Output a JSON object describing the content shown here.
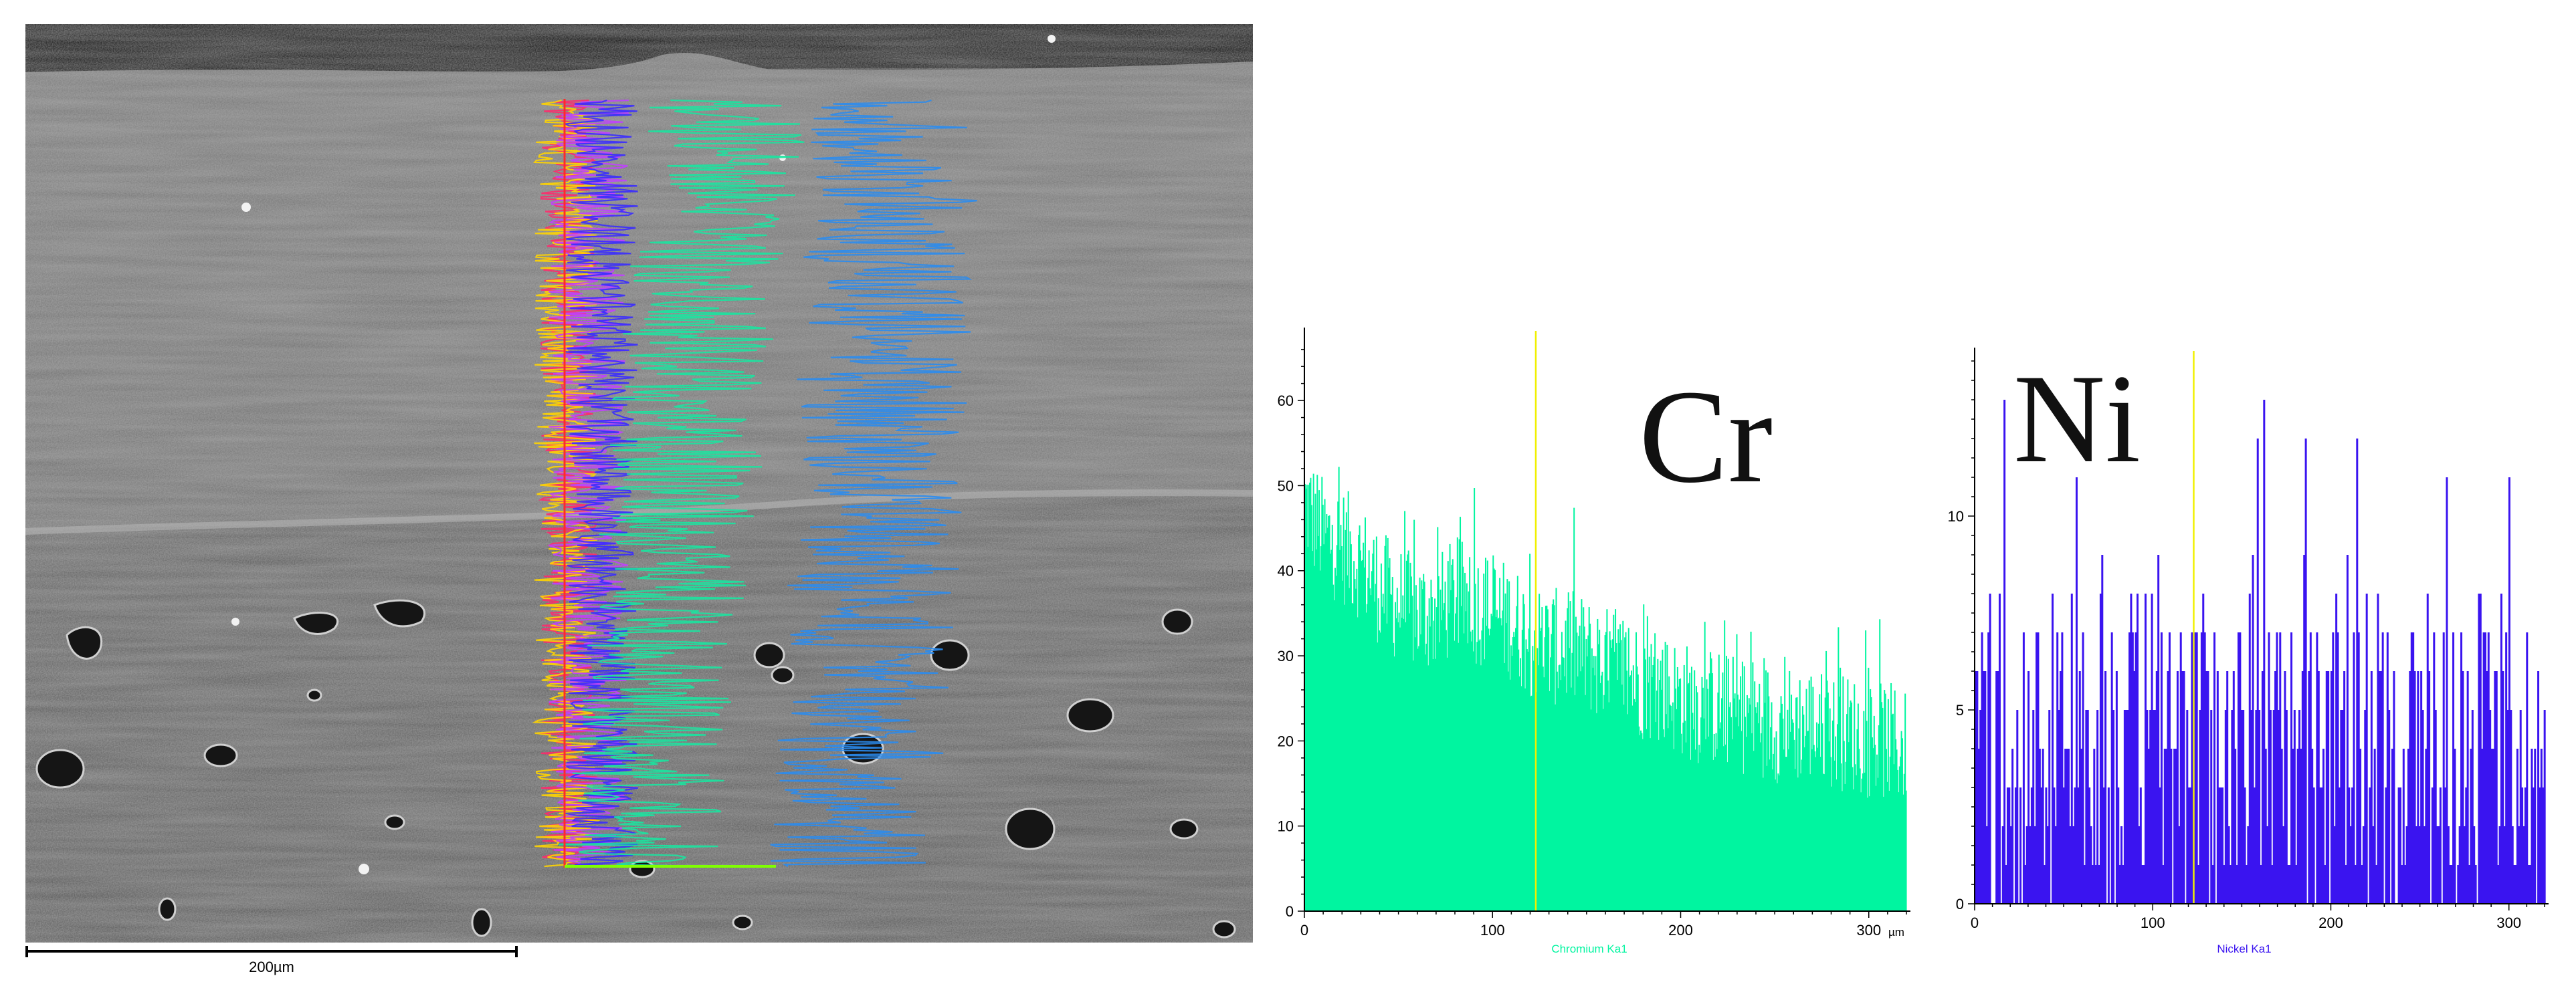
{
  "micrograph": {
    "scale_bar_label": "200µm",
    "trace_colors": [
      "#ff2a6d",
      "#ffd400",
      "#c040ff",
      "#3a2cff",
      "#18e6a0",
      "#2a8cf0"
    ]
  },
  "chart_data": [
    {
      "type": "bar",
      "element": "Cr",
      "title": "Cr",
      "xlabel": "Chromium Ka1",
      "x_unit": "µm",
      "xlim": [
        0,
        320
      ],
      "ylim": [
        0,
        67
      ],
      "x_ticks": [
        0,
        100,
        200,
        300
      ],
      "y_ticks": [
        0,
        10,
        20,
        30,
        40,
        50,
        60
      ],
      "color": "#00f5a0",
      "marker_x": 123,
      "grid": false,
      "trend_profile": [
        [
          0,
          48
        ],
        [
          10,
          44
        ],
        [
          20,
          43
        ],
        [
          30,
          41
        ],
        [
          40,
          38
        ],
        [
          50,
          36
        ],
        [
          60,
          35
        ],
        [
          70,
          35
        ],
        [
          80,
          37
        ],
        [
          90,
          36
        ],
        [
          100,
          35
        ],
        [
          110,
          34
        ],
        [
          120,
          32
        ],
        [
          130,
          31
        ],
        [
          140,
          31
        ],
        [
          150,
          30
        ],
        [
          160,
          29
        ],
        [
          170,
          28
        ],
        [
          180,
          27
        ],
        [
          190,
          26
        ],
        [
          200,
          25
        ],
        [
          210,
          24
        ],
        [
          220,
          24
        ],
        [
          230,
          23
        ],
        [
          240,
          23
        ],
        [
          250,
          22
        ],
        [
          260,
          22
        ],
        [
          270,
          22
        ],
        [
          280,
          21
        ],
        [
          290,
          21
        ],
        [
          300,
          20
        ],
        [
          310,
          20
        ],
        [
          320,
          19
        ]
      ],
      "noise_amplitude": 7
    },
    {
      "type": "bar",
      "element": "Ni",
      "title": "Ni",
      "xlabel": "Nickel Ka1",
      "x_unit": "µm",
      "xlim": [
        0,
        320
      ],
      "ylim": [
        0,
        14
      ],
      "x_ticks": [
        0,
        100,
        200,
        300
      ],
      "y_ticks": [
        0,
        5,
        10
      ],
      "color": "#3a14f0",
      "marker_x": 123,
      "grid": false,
      "trend_profile": [
        [
          0,
          4
        ],
        [
          100,
          4
        ],
        [
          200,
          4
        ],
        [
          320,
          4
        ]
      ],
      "noise_amplitude": 4
    }
  ]
}
